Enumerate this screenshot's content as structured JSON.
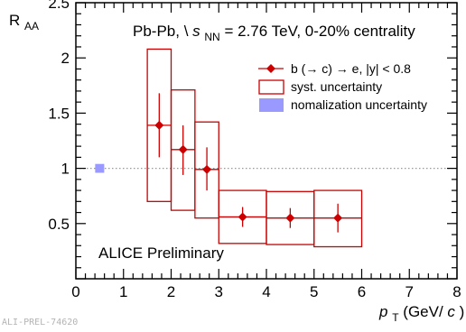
{
  "chart_data": {
    "type": "scatter",
    "title": "",
    "xlabel": "p_T (GeV/c)",
    "ylabel": "R_AA",
    "xlim": [
      0,
      8
    ],
    "ylim": [
      0,
      2.5
    ],
    "x_ticks": [
      0,
      1,
      2,
      3,
      4,
      5,
      6,
      7,
      8
    ],
    "y_ticks": [
      0.5,
      1,
      1.5,
      2,
      2.5
    ],
    "grid": false,
    "reference_line": {
      "y": 1,
      "style": "dotted",
      "color": "#999999"
    },
    "legend_placement": "top-right",
    "series": [
      {
        "name": "b (→ c) → e, |y| < 0.8",
        "color": "#cc0000",
        "marker": "diamond",
        "points": [
          {
            "x": 1.75,
            "y": 1.39,
            "ex": 0.25,
            "stat_low": 1.1,
            "stat_high": 1.68,
            "syst_low": 0.7,
            "syst_high": 2.08
          },
          {
            "x": 2.25,
            "y": 1.17,
            "ex": 0.25,
            "stat_low": 0.94,
            "stat_high": 1.39,
            "syst_low": 0.62,
            "syst_high": 1.71
          },
          {
            "x": 2.75,
            "y": 0.99,
            "ex": 0.25,
            "stat_low": 0.8,
            "stat_high": 1.19,
            "syst_low": 0.55,
            "syst_high": 1.42
          },
          {
            "x": 3.5,
            "y": 0.56,
            "ex": 0.5,
            "stat_low": 0.47,
            "stat_high": 0.65,
            "syst_low": 0.32,
            "syst_high": 0.8
          },
          {
            "x": 4.5,
            "y": 0.55,
            "ex": 0.5,
            "stat_low": 0.46,
            "stat_high": 0.64,
            "syst_low": 0.31,
            "syst_high": 0.79
          },
          {
            "x": 5.5,
            "y": 0.55,
            "ex": 0.5,
            "stat_low": 0.42,
            "stat_high": 0.68,
            "syst_low": 0.29,
            "syst_high": 0.8
          }
        ]
      }
    ],
    "normalization_uncertainty": {
      "x": 0.5,
      "y_low": 0.96,
      "y_high": 1.04,
      "color": "#9999ff"
    }
  },
  "texts": {
    "ylabel_main": "R",
    "ylabel_sub": "AA",
    "xlabel_main": "p",
    "xlabel_sub": "T",
    "xlabel_unit_open": " (GeV/",
    "xlabel_unit_c": "c",
    "xlabel_unit_close": ")",
    "system_label_prefix": "Pb-Pb, \\",
    "system_label_s": "s",
    "system_label_sub": "NN",
    "system_label_suffix": " = 2.76 TeV, 0-20% centrality",
    "preliminary_label": "ALICE Preliminary",
    "legend_data": "b (→ c) → e, |y| < 0.8",
    "legend_syst": "syst. uncertainty",
    "legend_norm": "nomalization uncertainty",
    "watermark": "ALI-PREL-74620"
  }
}
